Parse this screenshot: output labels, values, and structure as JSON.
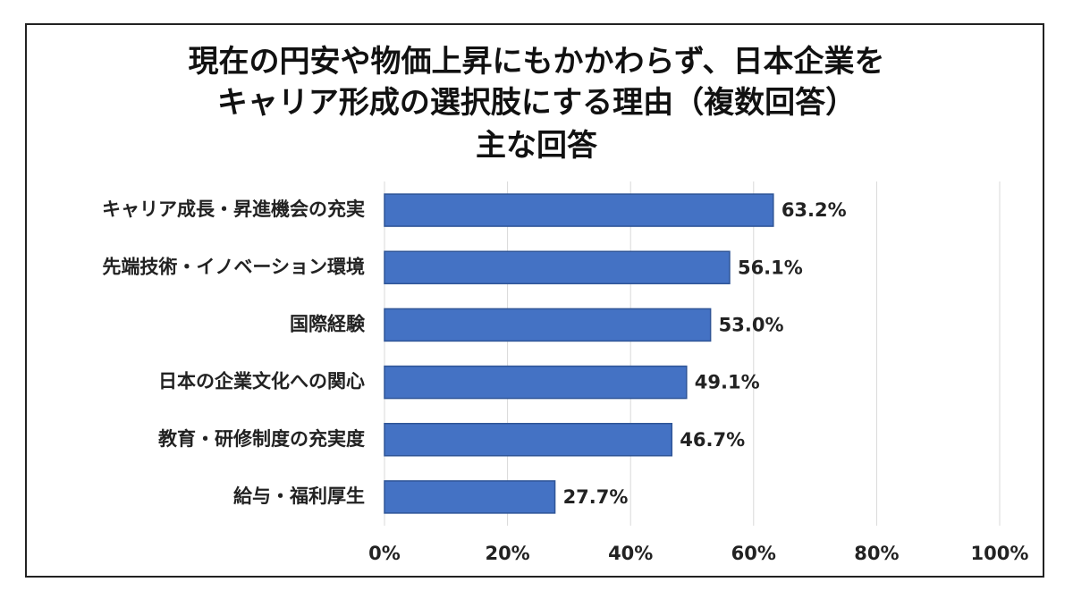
{
  "chart_data": {
    "type": "barh",
    "title": "現在の円安や物価上昇にもかかわらず、日本企業を\nキャリア形成の選択肢にする理由（複数回答）",
    "subtitle": "主な回答",
    "categories": [
      "キャリア成長・昇進機会の充実",
      "先端技術・イノベーション環境",
      "国際経験",
      "日本の企業文化への関心",
      "教育・研修制度の充実度",
      "給与・福利厚生"
    ],
    "values": [
      63.2,
      56.1,
      53.0,
      49.1,
      46.7,
      27.7
    ],
    "value_labels": [
      "63.2%",
      "56.1%",
      "53.0%",
      "49.1%",
      "46.7%",
      "27.7%"
    ],
    "color": "#4472c4",
    "xlim": [
      0,
      100
    ],
    "xticks": [
      {
        "value": 0,
        "label": "0%"
      },
      {
        "value": 20,
        "label": "20%"
      },
      {
        "value": 40,
        "label": "40%"
      },
      {
        "value": 60,
        "label": "60%"
      },
      {
        "value": 80,
        "label": "80%"
      },
      {
        "value": 100,
        "label": "100%"
      }
    ],
    "grid": true
  }
}
